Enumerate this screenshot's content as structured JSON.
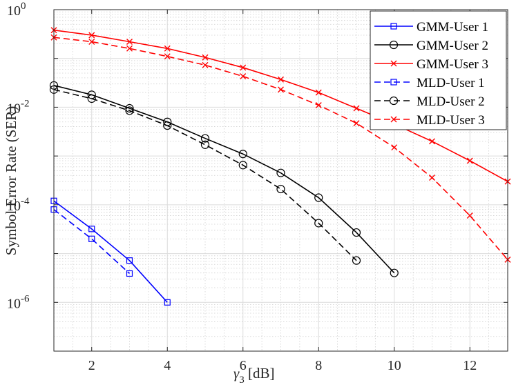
{
  "chart_data": {
    "type": "line",
    "title": "",
    "xlabel": "γ3 [dB]",
    "xlabel_main": "γ",
    "xlabel_sub": "3",
    "xlabel_unit": " [dB]",
    "ylabel": "Symbol Error Rate (SER)",
    "xlim": [
      1,
      13
    ],
    "ylim": [
      1e-07,
      1
    ],
    "yscale": "log",
    "x_ticks": [
      2,
      4,
      6,
      8,
      10,
      12
    ],
    "x_tick_labels": [
      "2",
      "4",
      "6",
      "8",
      "10",
      "12"
    ],
    "y_ticks": [
      {
        "value": 1,
        "base": "10",
        "exp": "0"
      },
      {
        "value": 0.01,
        "base": "10",
        "exp": "-2"
      },
      {
        "value": 0.0001,
        "base": "10",
        "exp": "-4"
      },
      {
        "value": 1e-06,
        "base": "10",
        "exp": "-6"
      }
    ],
    "grid": true,
    "legend_position": "top-right",
    "series": [
      {
        "name": "GMM-User 1",
        "color": "#0000ff",
        "dash": "solid",
        "marker": "square",
        "x": [
          1,
          2,
          3,
          4
        ],
        "values": [
          0.00012,
          3.2e-05,
          7.2e-06,
          1e-06
        ]
      },
      {
        "name": "GMM-User 2",
        "color": "#000000",
        "dash": "solid",
        "marker": "circle",
        "x": [
          1,
          2,
          3,
          4,
          5,
          6,
          7,
          8,
          9,
          10
        ],
        "values": [
          0.028,
          0.018,
          0.0095,
          0.005,
          0.0023,
          0.0011,
          0.00045,
          0.00014,
          2.7e-05,
          4e-06
        ]
      },
      {
        "name": "GMM-User 3",
        "color": "#ff0000",
        "dash": "solid",
        "marker": "x",
        "x": [
          1,
          2,
          3,
          4,
          5,
          6,
          7,
          8,
          9,
          10,
          11,
          12,
          13
        ],
        "values": [
          0.38,
          0.3,
          0.22,
          0.16,
          0.105,
          0.065,
          0.037,
          0.02,
          0.0095,
          0.0045,
          0.002,
          0.0008,
          0.0003
        ]
      },
      {
        "name": "MLD-User 1",
        "color": "#0000ff",
        "dash": "dashed",
        "marker": "square",
        "x": [
          1,
          2,
          3
        ],
        "values": [
          8e-05,
          2e-05,
          3.9e-06
        ]
      },
      {
        "name": "MLD-User 2",
        "color": "#000000",
        "dash": "dashed",
        "marker": "circle",
        "x": [
          1,
          2,
          3,
          4,
          5,
          6,
          7,
          8,
          9
        ],
        "values": [
          0.023,
          0.015,
          0.0085,
          0.0042,
          0.0017,
          0.00065,
          0.00021,
          4.2e-05,
          7.2e-06
        ]
      },
      {
        "name": "MLD-User 3",
        "color": "#ff0000",
        "dash": "dashed",
        "marker": "x",
        "x": [
          1,
          2,
          3,
          4,
          5,
          6,
          7,
          8,
          9,
          10,
          11,
          12,
          13
        ],
        "values": [
          0.27,
          0.22,
          0.16,
          0.11,
          0.073,
          0.043,
          0.023,
          0.011,
          0.0047,
          0.0015,
          0.00036,
          6e-05,
          7.5e-06
        ]
      }
    ]
  }
}
